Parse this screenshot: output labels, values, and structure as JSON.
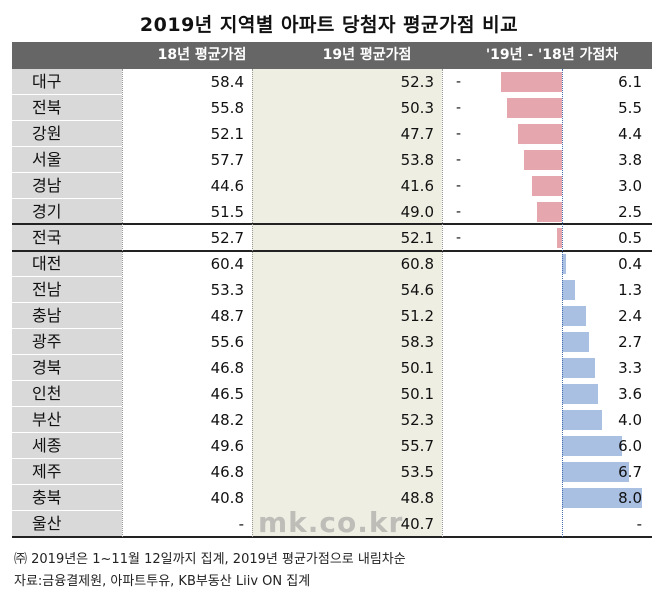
{
  "title": "2019년 지역별 아파트 당첨자 평균가점 비교",
  "headers": {
    "col_2018": "18년 평균가점",
    "col_2019": "19년 평균가점",
    "col_diff": "'19년 - '18년 가점차"
  },
  "rows": [
    {
      "region": "대구",
      "v2018": "58.4",
      "v2019": "52.3",
      "sign": "-",
      "diff": "6.1"
    },
    {
      "region": "전북",
      "v2018": "55.8",
      "v2019": "50.3",
      "sign": "-",
      "diff": "5.5"
    },
    {
      "region": "강원",
      "v2018": "52.1",
      "v2019": "47.7",
      "sign": "-",
      "diff": "4.4"
    },
    {
      "region": "서울",
      "v2018": "57.7",
      "v2019": "53.8",
      "sign": "-",
      "diff": "3.8"
    },
    {
      "region": "경남",
      "v2018": "44.6",
      "v2019": "41.6",
      "sign": "-",
      "diff": "3.0"
    },
    {
      "region": "경기",
      "v2018": "51.5",
      "v2019": "49.0",
      "sign": "-",
      "diff": "2.5"
    },
    {
      "region": "전국",
      "v2018": "52.7",
      "v2019": "52.1",
      "sign": "-",
      "diff": "0.5"
    },
    {
      "region": "대전",
      "v2018": "60.4",
      "v2019": "60.8",
      "sign": "",
      "diff": "0.4"
    },
    {
      "region": "전남",
      "v2018": "53.3",
      "v2019": "54.6",
      "sign": "",
      "diff": "1.3"
    },
    {
      "region": "충남",
      "v2018": "48.7",
      "v2019": "51.2",
      "sign": "",
      "diff": "2.4"
    },
    {
      "region": "광주",
      "v2018": "55.6",
      "v2019": "58.3",
      "sign": "",
      "diff": "2.7"
    },
    {
      "region": "경북",
      "v2018": "46.8",
      "v2019": "50.1",
      "sign": "",
      "diff": "3.3"
    },
    {
      "region": "인천",
      "v2018": "46.5",
      "v2019": "50.1",
      "sign": "",
      "diff": "3.6"
    },
    {
      "region": "부산",
      "v2018": "48.2",
      "v2019": "52.3",
      "sign": "",
      "diff": "4.0"
    },
    {
      "region": "세종",
      "v2018": "49.6",
      "v2019": "55.7",
      "sign": "",
      "diff": "6.0"
    },
    {
      "region": "제주",
      "v2018": "46.8",
      "v2019": "53.5",
      "sign": "",
      "diff": "6.7"
    },
    {
      "region": "충북",
      "v2018": "40.8",
      "v2019": "48.8",
      "sign": "",
      "diff": "8.0"
    },
    {
      "region": "울산",
      "v2018": "-",
      "v2019": "40.7",
      "sign": "",
      "diff": "-"
    }
  ],
  "colors": {
    "negative_bar": "#e6a6ad",
    "positive_bar": "#a9c0e3",
    "header_bg": "#666666",
    "region_bg": "#d9d9d9",
    "col2019_bg": "#efeee3"
  },
  "chart_data": {
    "type": "table",
    "title": "2019년 지역별 아파트 당첨자 평균가점 비교",
    "columns": [
      "18년 평균가점",
      "19년 평균가점",
      "'19년 - '18년 가점차"
    ],
    "categories": [
      "대구",
      "전북",
      "강원",
      "서울",
      "경남",
      "경기",
      "전국",
      "대전",
      "전남",
      "충남",
      "광주",
      "경북",
      "인천",
      "부산",
      "세종",
      "제주",
      "충북",
      "울산"
    ],
    "series": [
      {
        "name": "18년 평균가점",
        "values": [
          58.4,
          55.8,
          52.1,
          57.7,
          44.6,
          51.5,
          52.7,
          60.4,
          53.3,
          48.7,
          55.6,
          46.8,
          46.5,
          48.2,
          49.6,
          46.8,
          40.8,
          null
        ]
      },
      {
        "name": "19년 평균가점",
        "values": [
          52.3,
          50.3,
          47.7,
          53.8,
          41.6,
          49.0,
          52.1,
          60.8,
          54.6,
          51.2,
          58.3,
          50.1,
          50.1,
          52.3,
          55.7,
          53.5,
          48.8,
          40.7
        ]
      },
      {
        "name": "'19년 - '18년 가점차",
        "values": [
          -6.1,
          -5.5,
          -4.4,
          -3.8,
          -3.0,
          -2.5,
          -0.5,
          0.4,
          1.3,
          2.4,
          2.7,
          3.3,
          3.6,
          4.0,
          6.0,
          6.7,
          8.0,
          null
        ]
      }
    ]
  },
  "watermark": "mk.co.kr",
  "notes": [
    "㈜ 2019년은 1~11월 12일까지 집계, 2019년 평균가점으로 내림차순",
    "자료:금융결제원, 아파트투유, KB부동산 Liiv ON 집계"
  ]
}
